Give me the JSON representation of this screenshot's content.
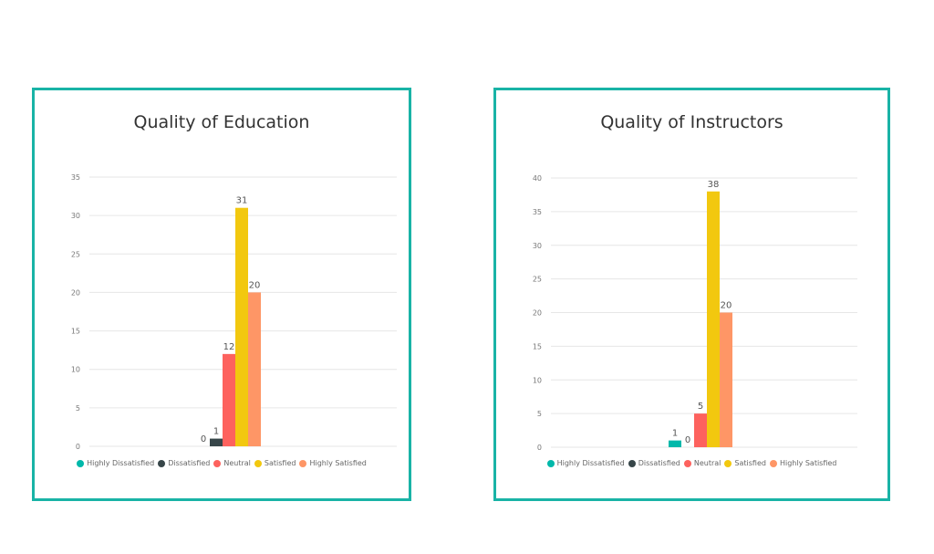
{
  "chart_data": [
    {
      "type": "bar",
      "title": "Quality of Education",
      "categories": [
        "Highly Dissatisfied",
        "Dissatisfied",
        "Neutral",
        "Satisfied",
        "Highly Satisfied"
      ],
      "values": [
        0,
        1,
        12,
        31,
        20
      ],
      "colors": [
        "#01b8aa",
        "#374649",
        "#fd625e",
        "#f2c80f",
        "#fe9666"
      ],
      "ylim": [
        0,
        35
      ],
      "yticks": [
        0,
        5,
        10,
        15,
        20,
        25,
        30,
        35
      ],
      "grid": true,
      "legend": "bottom"
    },
    {
      "type": "bar",
      "title": "Quality of Instructors",
      "categories": [
        "Highly Dissatisfied",
        "Dissatisfied",
        "Neutral",
        "Satisfied",
        "Highly Satisfied"
      ],
      "values": [
        1,
        0,
        5,
        38,
        20
      ],
      "colors": [
        "#01b8aa",
        "#374649",
        "#fd625e",
        "#f2c80f",
        "#fe9666"
      ],
      "ylim": [
        0,
        40
      ],
      "yticks": [
        0,
        5,
        10,
        15,
        20,
        25,
        30,
        35,
        40
      ],
      "grid": true,
      "legend": "bottom"
    }
  ]
}
